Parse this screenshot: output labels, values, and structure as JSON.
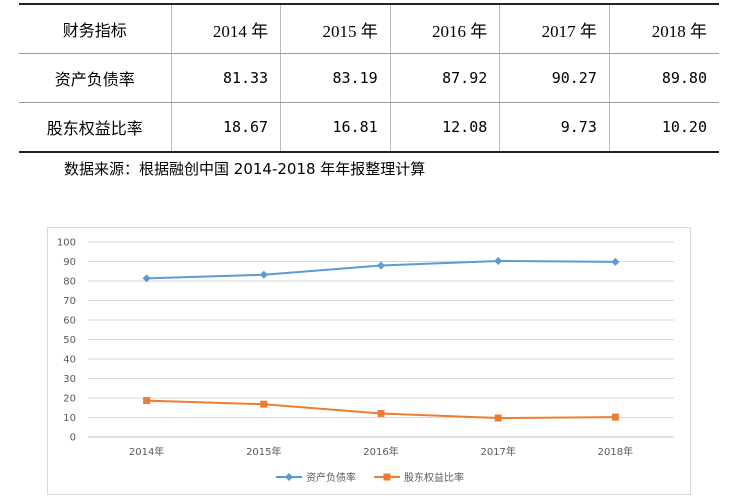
{
  "table": {
    "header": [
      "财务指标",
      "2014 年",
      "2015 年",
      "2016 年",
      "2017 年",
      "2018 年"
    ],
    "rows": [
      {
        "label": "资产负债率",
        "values": [
          "81.33",
          "83.19",
          "87.92",
          "90.27",
          "89.80"
        ]
      },
      {
        "label": "股东权益比率",
        "values": [
          "18.67",
          "16.81",
          "12.08",
          "9.73",
          "10.20"
        ]
      }
    ]
  },
  "source_note": "数据来源：根据融创中国 2014-2018 年年报整理计算",
  "chart_data": {
    "type": "line",
    "categories": [
      "2014年",
      "2015年",
      "2016年",
      "2017年",
      "2018年"
    ],
    "series": [
      {
        "name": "资产负债率",
        "values": [
          81.33,
          83.19,
          87.92,
          90.27,
          89.8
        ],
        "color": "#5B9BD5",
        "marker": "diamond"
      },
      {
        "name": "股东权益比率",
        "values": [
          18.67,
          16.81,
          12.08,
          9.73,
          10.2
        ],
        "color": "#ED7D31",
        "marker": "square"
      }
    ],
    "ylim": [
      0,
      100
    ],
    "yticks": [
      0,
      10,
      20,
      30,
      40,
      50,
      60,
      70,
      80,
      90,
      100
    ],
    "grid": true,
    "legend": "bottom"
  }
}
